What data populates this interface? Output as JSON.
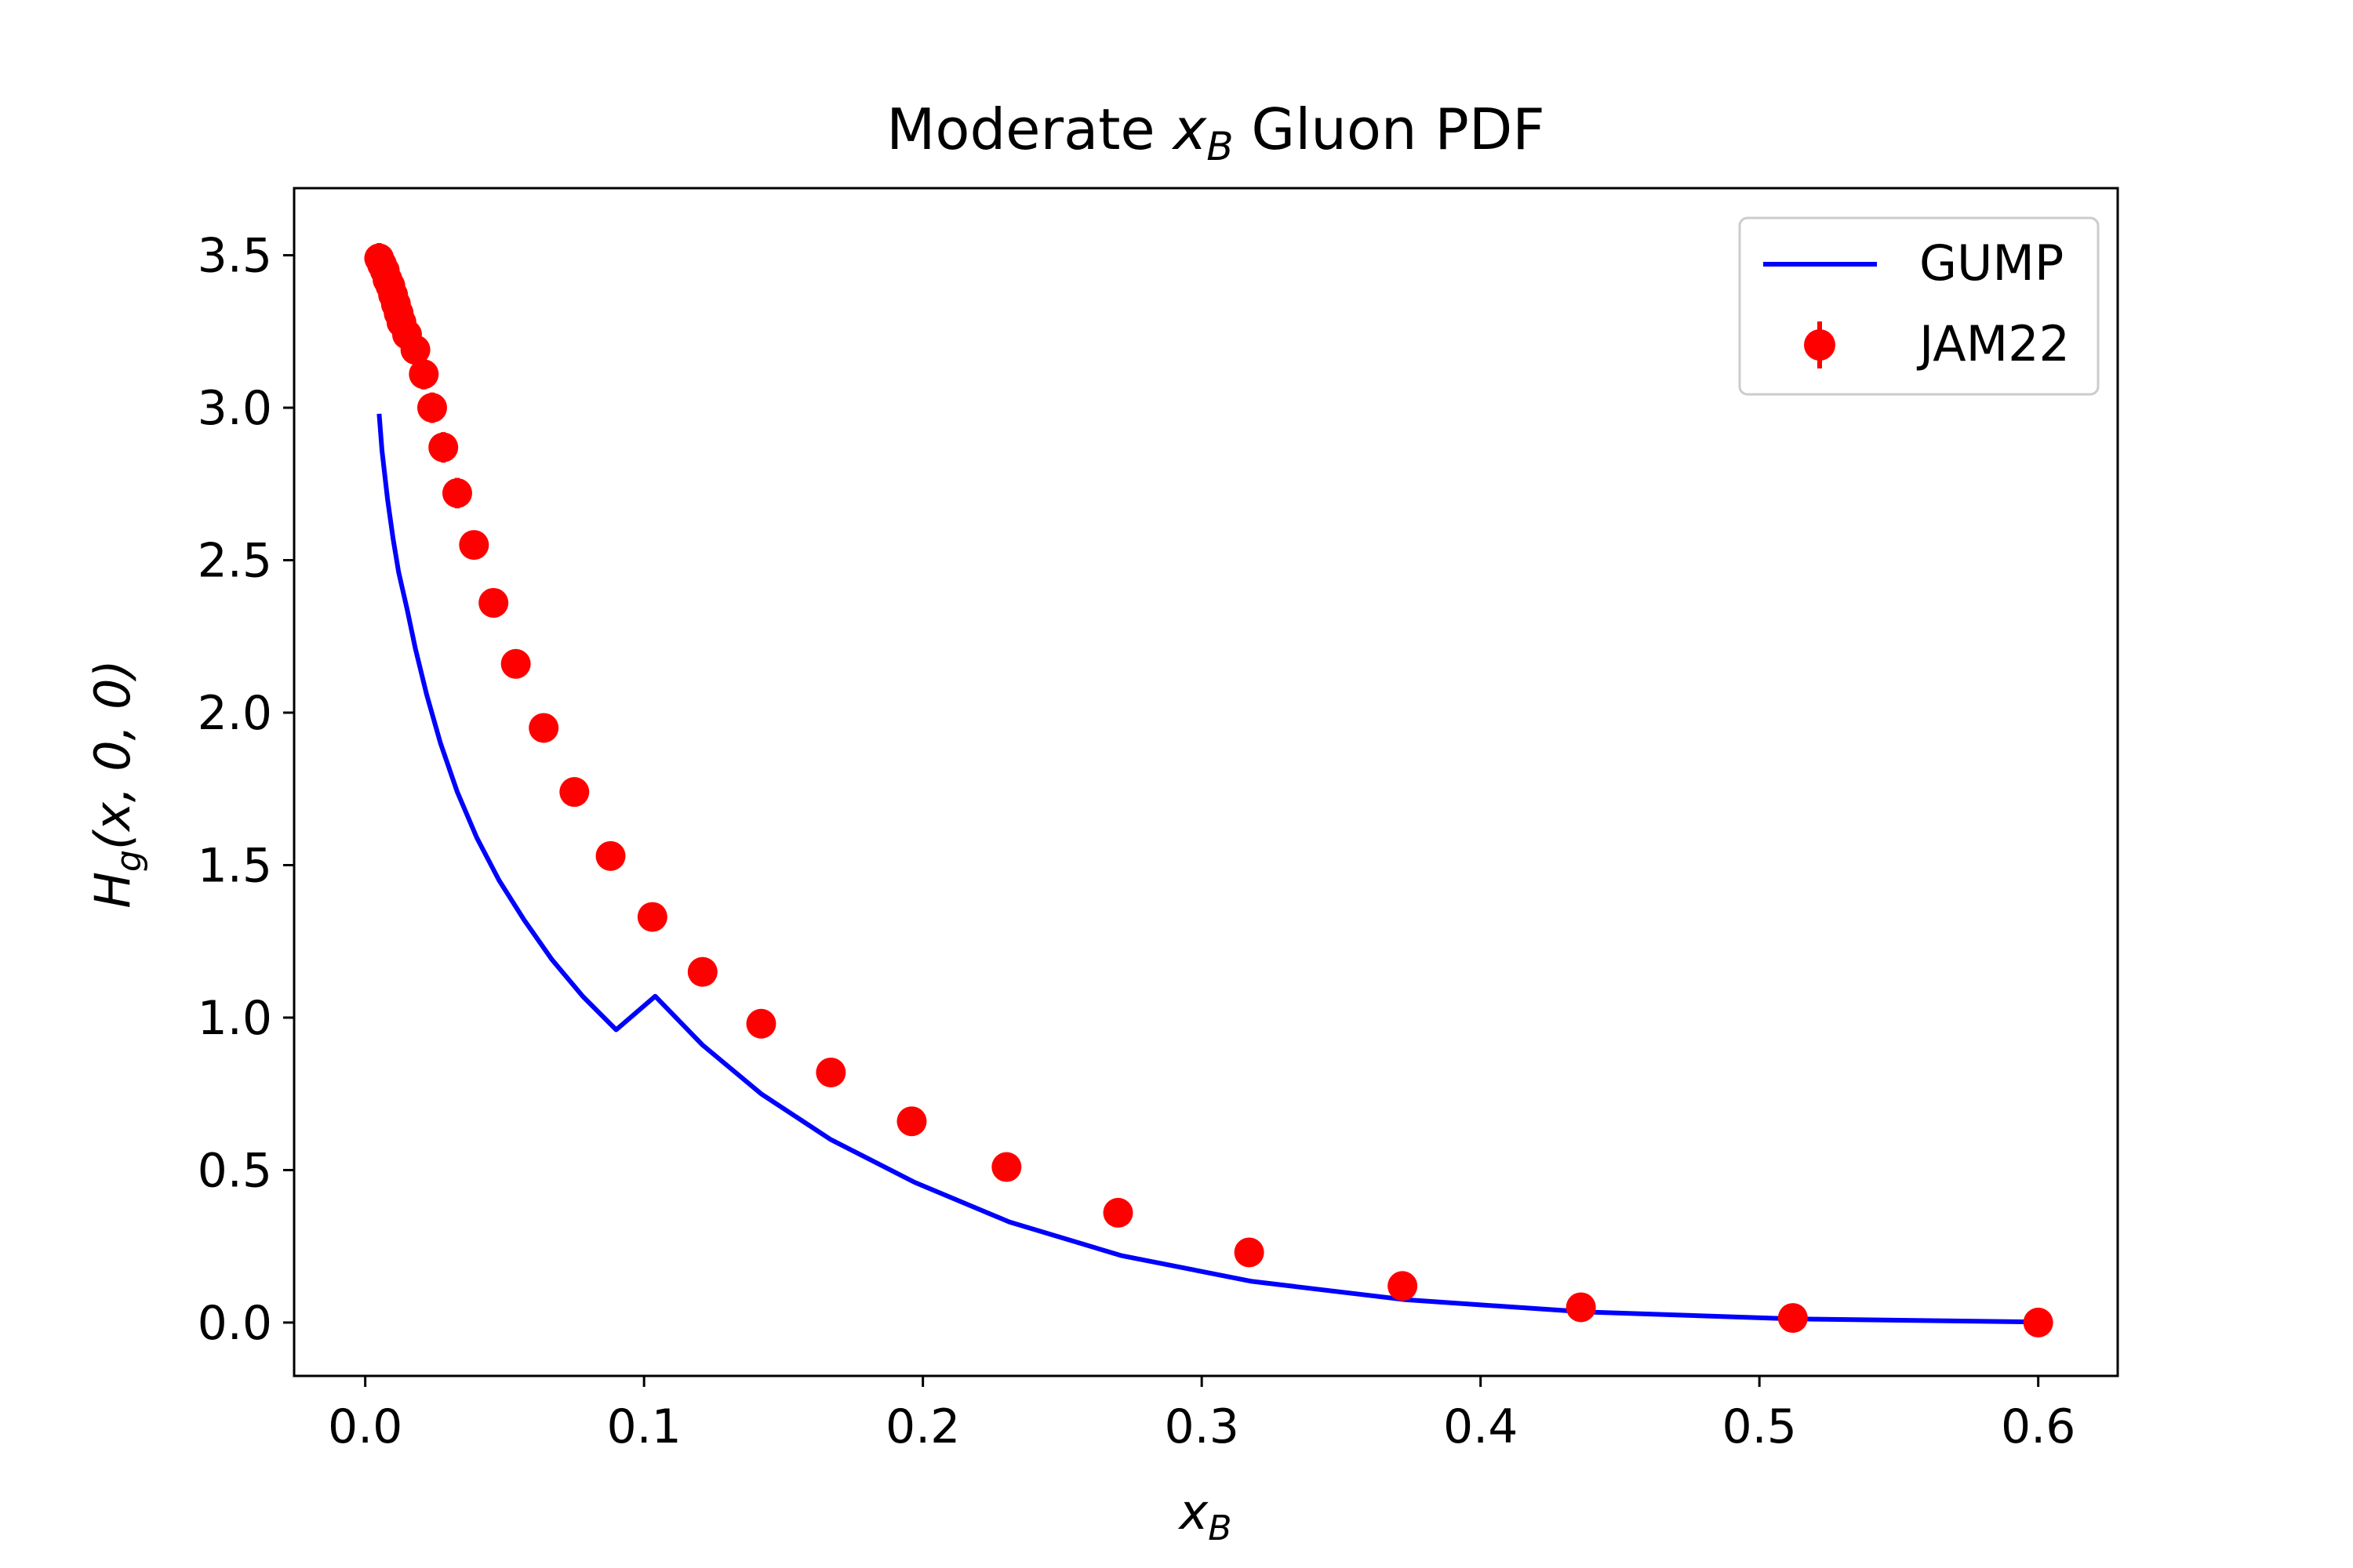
{
  "chart_data": {
    "type": "scatter",
    "title": {
      "prefix": "Moderate ",
      "var": "x",
      "sub": "B",
      "suffix": " Gluon PDF"
    },
    "xlabel": {
      "var": "x",
      "sub": "B"
    },
    "ylabel": {
      "var": "H",
      "sub": "g",
      "args": "(x, 0, 0)"
    },
    "xlim": [
      -0.0255,
      0.6285
    ],
    "ylim": [
      -0.175,
      3.72
    ],
    "xticks": [
      0.0,
      0.1,
      0.2,
      0.3,
      0.4,
      0.5,
      0.6
    ],
    "xtick_labels": [
      "0.0",
      "0.1",
      "0.2",
      "0.3",
      "0.4",
      "0.5",
      "0.6"
    ],
    "yticks": [
      0.0,
      0.5,
      1.0,
      1.5,
      2.0,
      2.5,
      3.0,
      3.5
    ],
    "ytick_labels": [
      "0.0",
      "0.5",
      "1.0",
      "1.5",
      "2.0",
      "2.5",
      "3.0",
      "3.5"
    ],
    "grid": false,
    "legend": {
      "position": "top-right",
      "entries": [
        {
          "label": "GUMP",
          "kind": "line",
          "color": "#0000ff"
        },
        {
          "label": "JAM22",
          "kind": "errorbar",
          "color": "#ff0000"
        }
      ]
    },
    "series": [
      {
        "name": "GUMP",
        "kind": "line",
        "color": "#0000ff",
        "x": [
          0.005,
          0.006,
          0.008,
          0.01,
          0.012,
          0.015,
          0.018,
          0.022,
          0.027,
          0.033,
          0.04,
          0.048,
          0.057,
          0.067,
          0.078,
          0.09,
          0.104,
          0.121,
          0.142,
          0.167,
          0.197,
          0.231,
          0.271,
          0.318,
          0.373,
          0.437,
          0.512,
          0.6
        ],
        "y": [
          2.98,
          2.86,
          2.7,
          2.57,
          2.46,
          2.34,
          2.21,
          2.06,
          1.9,
          1.74,
          1.59,
          1.45,
          1.32,
          1.19,
          1.07,
          0.96,
          1.07,
          0.91,
          0.75,
          0.6,
          0.46,
          0.33,
          0.22,
          0.135,
          0.075,
          0.035,
          0.012,
          0.002
        ]
      },
      {
        "name": "JAM22",
        "kind": "errorbar",
        "color": "#ff0000",
        "x": [
          0.005,
          0.006,
          0.007,
          0.008,
          0.009,
          0.01,
          0.011,
          0.012,
          0.013,
          0.015,
          0.018,
          0.021,
          0.024,
          0.028,
          0.033,
          0.039,
          0.046,
          0.054,
          0.064,
          0.075,
          0.088,
          0.103,
          0.121,
          0.142,
          0.167,
          0.196,
          0.23,
          0.27,
          0.317,
          0.372,
          0.436,
          0.512,
          0.6
        ],
        "y": [
          3.49,
          3.47,
          3.45,
          3.42,
          3.4,
          3.37,
          3.34,
          3.31,
          3.28,
          3.24,
          3.19,
          3.11,
          3.0,
          2.87,
          2.72,
          2.55,
          2.36,
          2.16,
          1.95,
          1.74,
          1.53,
          1.33,
          1.15,
          0.98,
          0.82,
          0.66,
          0.51,
          0.36,
          0.23,
          0.12,
          0.05,
          0.015,
          0.0
        ],
        "yerr": [
          0.05,
          0.05,
          0.05,
          0.05,
          0.05,
          0.05,
          0.05,
          0.05,
          0.05,
          0.05,
          0.05,
          0.05,
          0.05,
          0.05,
          0.05,
          0.04,
          0.04,
          0.04,
          0.03,
          0.03,
          0.03,
          0.03,
          0.02,
          0.02,
          0.02,
          0.02,
          0.02,
          0.02,
          0.01,
          0.01,
          0.01,
          0.01,
          0.01
        ]
      }
    ]
  }
}
